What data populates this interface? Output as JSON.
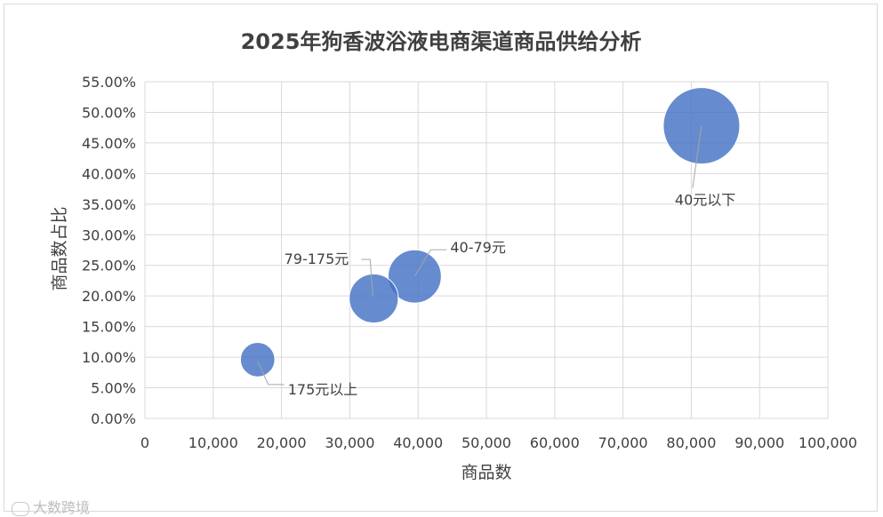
{
  "chart_data": {
    "type": "scatter",
    "title": "2025年狗香波浴液电商渠道商品供给分析",
    "xlabel": "商品数",
    "ylabel": "商品数占比",
    "xlim": [
      0,
      100000
    ],
    "ylim": [
      0,
      55
    ],
    "x_ticks": [
      "0",
      "10,000",
      "20,000",
      "30,000",
      "40,000",
      "50,000",
      "60,000",
      "70,000",
      "80,000",
      "90,000",
      "100,000"
    ],
    "y_ticks": [
      "0.00%",
      "5.00%",
      "10.00%",
      "15.00%",
      "20.00%",
      "25.00%",
      "30.00%",
      "35.00%",
      "40.00%",
      "45.00%",
      "50.00%",
      "55.00%"
    ],
    "grid": true,
    "color": "#4472c4",
    "points": [
      {
        "label": "40元以下",
        "x": 81500,
        "y": 47.8,
        "size": 81500
      },
      {
        "label": "40-79元",
        "x": 39500,
        "y": 23.2,
        "size": 39500
      },
      {
        "label": "79-175元",
        "x": 33500,
        "y": 19.6,
        "size": 33500
      },
      {
        "label": "175元以上",
        "x": 16500,
        "y": 9.6,
        "size": 16500
      }
    ]
  },
  "footer": {
    "text": "大数跨境"
  }
}
